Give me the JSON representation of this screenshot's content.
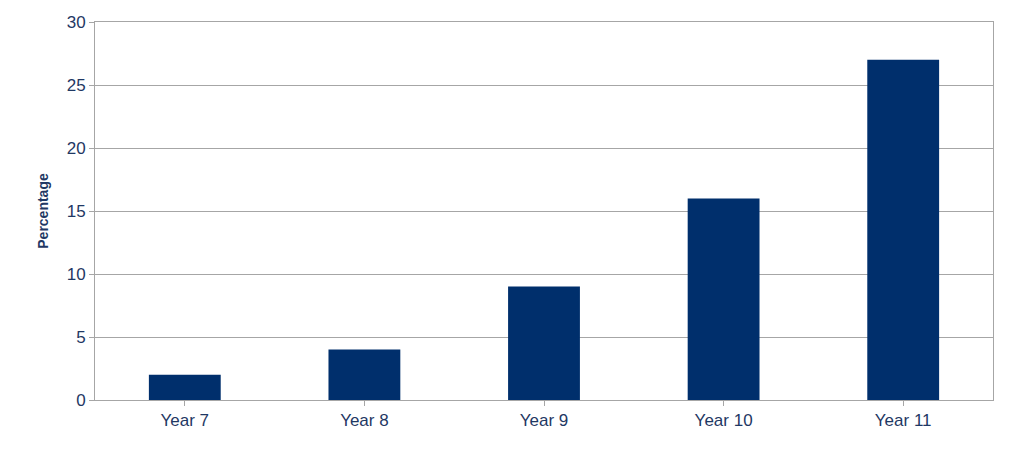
{
  "chart_data": {
    "type": "bar",
    "y_label": "Percentage",
    "categories": [
      "Year 7",
      "Year 8",
      "Year 9",
      "Year 10",
      "Year 11"
    ],
    "values": [
      2,
      4,
      9,
      16,
      27
    ],
    "color": "#002f6c",
    "ylim": [
      0,
      30
    ],
    "yticks": [
      0,
      5,
      10,
      15,
      20,
      25,
      30
    ],
    "grid": true
  }
}
